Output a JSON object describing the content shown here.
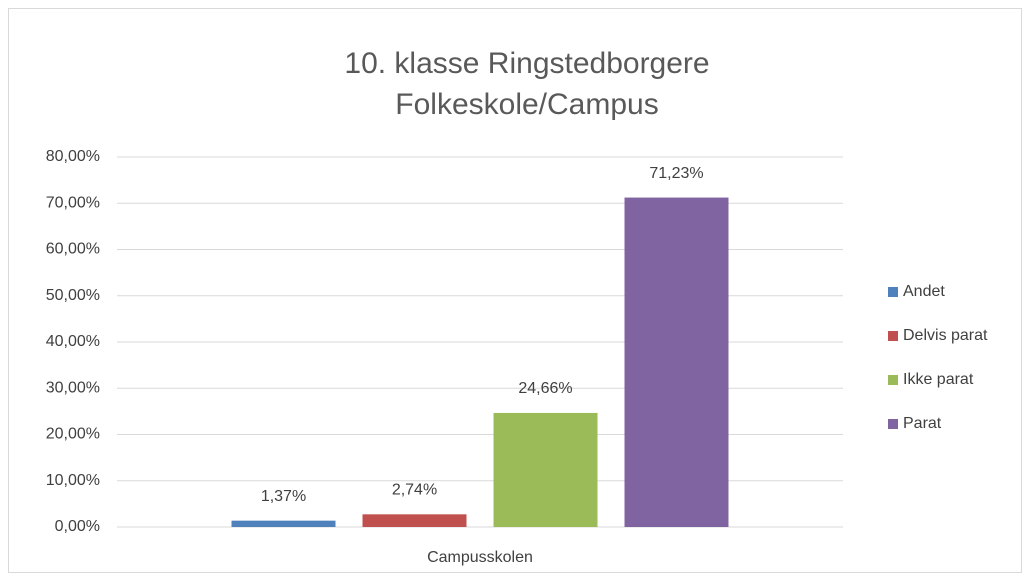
{
  "chart_data": {
    "type": "bar",
    "title": [
      "10. klasse Ringstedborgere",
      "Folkeskole/Campus"
    ],
    "categories": [
      "Campusskolen"
    ],
    "series": [
      {
        "name": "Andet",
        "color": "#4f81bd",
        "values": [
          1.37
        ],
        "value_labels": [
          "1,37%"
        ]
      },
      {
        "name": "Delvis parat",
        "color": "#c0504d",
        "values": [
          2.74
        ],
        "value_labels": [
          "2,74%"
        ]
      },
      {
        "name": "Ikke parat",
        "color": "#9bbb59",
        "values": [
          24.66
        ],
        "value_labels": [
          "24,66%"
        ]
      },
      {
        "name": "Parat",
        "color": "#8064a2",
        "values": [
          71.23
        ],
        "value_labels": [
          "71,23%"
        ]
      }
    ],
    "ylim": [
      0,
      80
    ],
    "yticks": [
      {
        "value": 0,
        "label": "0,00%"
      },
      {
        "value": 10,
        "label": "10,00%"
      },
      {
        "value": 20,
        "label": "20,00%"
      },
      {
        "value": 30,
        "label": "30,00%"
      },
      {
        "value": 40,
        "label": "40,00%"
      },
      {
        "value": 50,
        "label": "50,00%"
      },
      {
        "value": 60,
        "label": "60,00%"
      },
      {
        "value": 70,
        "label": "70,00%"
      },
      {
        "value": 80,
        "label": "80,00%"
      }
    ],
    "grid": true,
    "legend": "right"
  }
}
